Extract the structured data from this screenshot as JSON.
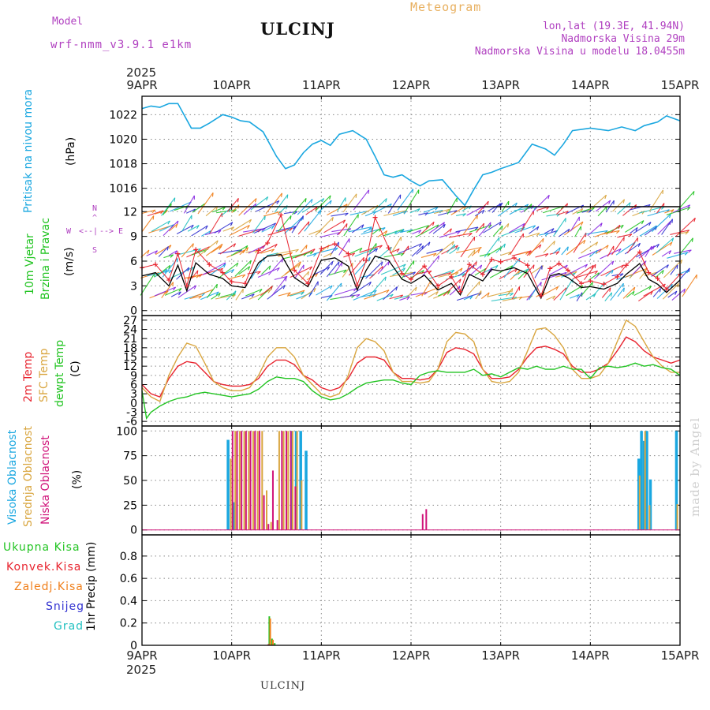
{
  "header": {
    "model_label": "Model",
    "model_name": "wrf-nmm_v3.9.1 e1km",
    "station": "ULCINJ",
    "product": "Meteogram",
    "lonlat": "lon,lat (19.3E, 41.94N)",
    "elevation": "Nadmorska Visina 29m",
    "model_elevation": "Nadmorska Visina u modelu 18.0455m",
    "credit": "made by Angel",
    "footer_station": "ULCINJ"
  },
  "colors": {
    "pressure": "#1aa7e0",
    "wind_speed": "#000000",
    "wind_gust": "#e8242f",
    "temp_2m": "#e8242f",
    "temp_sfc": "#d9a640",
    "temp_dew": "#22c422",
    "cloud_high": "#1aa7e0",
    "cloud_mid": "#d9a640",
    "cloud_low": "#d0147a",
    "precip_total": "#22c422",
    "precip_conv": "#e8242f",
    "precip_strat": "#f07f1a",
    "precip_snow": "#3030d0",
    "precip_graupel": "#20c0c0",
    "header_purple": "#b040c0",
    "header_orange": "#e8b060"
  },
  "time_axis": {
    "year": "2025",
    "days": [
      "9APR",
      "10APR",
      "11APR",
      "12APR",
      "13APR",
      "14APR",
      "15APR"
    ]
  },
  "chart_data": [
    {
      "type": "line",
      "panel": "pressure",
      "title": "",
      "ylabel_lines": [
        "Pritisak na nivou mora",
        "(hPa)"
      ],
      "ylim": [
        1014.5,
        1023.5
      ],
      "yticks": [
        1016,
        1018,
        1020,
        1022
      ],
      "xlim": [
        0,
        6
      ],
      "grid": true,
      "series": [
        {
          "x": [
            0,
            0.1,
            0.2,
            0.3,
            0.4,
            0.55,
            0.65,
            0.75,
            0.9,
            1.0,
            1.1,
            1.2,
            1.35,
            1.5,
            1.6,
            1.7,
            1.8,
            1.9,
            2.0,
            2.1,
            2.2,
            2.35,
            2.5,
            2.6,
            2.7,
            2.8,
            2.9,
            3.0,
            3.1,
            3.2,
            3.35,
            3.5,
            3.6,
            3.7,
            3.8,
            3.9,
            4.0,
            4.2,
            4.35,
            4.5,
            4.6,
            4.7,
            4.8,
            5.0,
            5.2,
            5.35,
            5.5,
            5.6,
            5.75,
            5.85,
            6.0
          ],
          "values": [
            1022.5,
            1022.7,
            1022.6,
            1022.9,
            1022.9,
            1020.9,
            1020.9,
            1021.3,
            1022.0,
            1021.8,
            1021.5,
            1021.4,
            1020.6,
            1018.6,
            1017.6,
            1017.9,
            1018.9,
            1019.6,
            1019.9,
            1019.5,
            1020.4,
            1020.7,
            1020.0,
            1018.6,
            1017.1,
            1016.9,
            1017.1,
            1016.6,
            1016.2,
            1016.6,
            1016.7,
            1015.4,
            1014.6,
            1015.9,
            1017.1,
            1017.3,
            1017.6,
            1018.1,
            1019.6,
            1019.2,
            1018.7,
            1019.6,
            1020.7,
            1020.9,
            1020.7,
            1021.0,
            1020.7,
            1021.1,
            1021.4,
            1021.9,
            1021.5
          ]
        }
      ]
    },
    {
      "type": "line",
      "panel": "wind",
      "ylabel_lines": [
        "10m Vjetar",
        "Brzina i Pravac",
        "(m/s)"
      ],
      "compass": {
        "n": "N",
        "s": "S",
        "w": "W",
        "e": "E",
        "arrow_left": "<--",
        "arrow_right": "-->",
        "bar": "|"
      },
      "ylim": [
        -0.6,
        12.6
      ],
      "yticks": [
        0,
        3,
        6,
        9,
        12
      ],
      "xlim": [
        0,
        6
      ],
      "grid": true,
      "series": [
        {
          "role": "speed",
          "x": [
            0,
            0.15,
            0.3,
            0.4,
            0.5,
            0.6,
            0.75,
            0.9,
            1.0,
            1.15,
            1.3,
            1.4,
            1.55,
            1.7,
            1.85,
            2.0,
            2.15,
            2.3,
            2.4,
            2.5,
            2.6,
            2.75,
            2.9,
            3.0,
            3.15,
            3.3,
            3.45,
            3.55,
            3.65,
            3.8,
            3.9,
            4.0,
            4.15,
            4.3,
            4.45,
            4.55,
            4.65,
            4.75,
            4.9,
            5.0,
            5.15,
            5.3,
            5.4,
            5.55,
            5.65,
            5.75,
            5.85,
            6.0
          ],
          "values": [
            4.2,
            4.6,
            3.0,
            5.5,
            2.4,
            5.8,
            4.4,
            3.9,
            3.0,
            2.8,
            5.8,
            6.6,
            6.8,
            4.0,
            2.9,
            6.1,
            6.4,
            5.4,
            2.5,
            4.9,
            6.6,
            6.1,
            3.8,
            3.3,
            4.3,
            2.5,
            3.3,
            1.9,
            4.4,
            3.6,
            5.0,
            4.8,
            5.2,
            4.5,
            1.5,
            4.2,
            4.5,
            4.0,
            2.8,
            2.9,
            2.6,
            3.3,
            4.4,
            5.7,
            3.8,
            3.2,
            2.2,
            3.7
          ]
        },
        {
          "role": "gust",
          "x": [
            0,
            0.15,
            0.3,
            0.4,
            0.5,
            0.6,
            0.75,
            0.9,
            1.0,
            1.15,
            1.3,
            1.4,
            1.55,
            1.7,
            1.85,
            2.0,
            2.15,
            2.3,
            2.4,
            2.5,
            2.6,
            2.75,
            2.9,
            3.0,
            3.15,
            3.3,
            3.45,
            3.55,
            3.65,
            3.8,
            3.9,
            4.0,
            4.15,
            4.3,
            4.45,
            4.55,
            4.65,
            4.75,
            4.9,
            5.0,
            5.15,
            5.3,
            5.4,
            5.55,
            5.65,
            5.75,
            5.85,
            6.0
          ],
          "values": [
            5.2,
            5.6,
            3.7,
            6.9,
            3.0,
            7.4,
            5.6,
            4.6,
            3.5,
            3.3,
            7.3,
            8.2,
            11.6,
            4.9,
            3.3,
            7.5,
            8.1,
            6.9,
            3.1,
            6.1,
            11.3,
            7.6,
            4.5,
            3.8,
            5.4,
            3.0,
            4.1,
            2.3,
            5.6,
            4.4,
            6.2,
            5.9,
            6.4,
            5.5,
            1.8,
            5.1,
            5.7,
            4.9,
            3.3,
            3.6,
            3.2,
            4.1,
            5.5,
            7.1,
            4.6,
            3.9,
            2.6,
            4.4
          ]
        }
      ]
    },
    {
      "type": "line",
      "panel": "temperature",
      "ylabel_lines": [
        "2m Temp",
        "SFC Temp",
        "dewpt Temp",
        "(C)"
      ],
      "ylim": [
        -7.5,
        28.5
      ],
      "yticks": [
        -6,
        -3,
        0,
        3,
        6,
        9,
        12,
        15,
        18,
        21,
        24,
        27
      ],
      "xlim": [
        0,
        6
      ],
      "grid": true,
      "series": [
        {
          "role": "2m",
          "x": [
            0,
            0.1,
            0.2,
            0.3,
            0.4,
            0.5,
            0.6,
            0.7,
            0.8,
            0.9,
            1.0,
            1.1,
            1.2,
            1.3,
            1.4,
            1.5,
            1.6,
            1.7,
            1.8,
            1.9,
            2.0,
            2.1,
            2.2,
            2.3,
            2.4,
            2.5,
            2.6,
            2.7,
            2.8,
            2.9,
            3.0,
            3.1,
            3.2,
            3.3,
            3.4,
            3.5,
            3.6,
            3.7,
            3.8,
            3.9,
            4.0,
            4.1,
            4.2,
            4.3,
            4.4,
            4.5,
            4.6,
            4.7,
            4.8,
            4.9,
            5.0,
            5.1,
            5.2,
            5.3,
            5.4,
            5.5,
            5.6,
            5.7,
            5.8,
            5.9,
            6.0
          ],
          "values": [
            6,
            3,
            2,
            8,
            12,
            13.5,
            13,
            10,
            7,
            6,
            5.5,
            5.5,
            6,
            8,
            12,
            14,
            14,
            12.5,
            9,
            7.5,
            5,
            4,
            5,
            8,
            13,
            15,
            15,
            14,
            10,
            8,
            8,
            7.5,
            8,
            11,
            16.5,
            18,
            17.5,
            16,
            11,
            8,
            8,
            8.5,
            11,
            15,
            18,
            18.5,
            17.5,
            16,
            12,
            10,
            10,
            11,
            13,
            17,
            21.5,
            20,
            17,
            15,
            14,
            13,
            14
          ]
        },
        {
          "role": "sfc",
          "x": [
            0,
            0.1,
            0.2,
            0.3,
            0.4,
            0.5,
            0.6,
            0.7,
            0.8,
            0.9,
            1.0,
            1.1,
            1.2,
            1.3,
            1.4,
            1.5,
            1.6,
            1.7,
            1.8,
            1.9,
            2.0,
            2.1,
            2.2,
            2.3,
            2.4,
            2.5,
            2.6,
            2.7,
            2.8,
            2.9,
            3.0,
            3.1,
            3.2,
            3.3,
            3.4,
            3.5,
            3.6,
            3.7,
            3.8,
            3.9,
            4.0,
            4.1,
            4.2,
            4.3,
            4.4,
            4.5,
            4.6,
            4.7,
            4.8,
            4.9,
            5.0,
            5.1,
            5.2,
            5.3,
            5.4,
            5.5,
            5.6,
            5.7,
            5.8,
            5.9,
            6.0
          ],
          "values": [
            5,
            2,
            0.5,
            9,
            15,
            19.5,
            18.5,
            13,
            7,
            5,
            4,
            4,
            5,
            9,
            15,
            18,
            18,
            15,
            9,
            6,
            3,
            2,
            3,
            9,
            18,
            21,
            20,
            17,
            10,
            7,
            7,
            6.5,
            7,
            11,
            20,
            23,
            22.5,
            20,
            11,
            7,
            6.5,
            7,
            10,
            17,
            24,
            24.5,
            22,
            18,
            11,
            8,
            8,
            9,
            13,
            20,
            27,
            25,
            20,
            15,
            12,
            10,
            10
          ]
        },
        {
          "role": "dewpoint",
          "x": [
            0,
            0.05,
            0.1,
            0.2,
            0.3,
            0.4,
            0.5,
            0.6,
            0.7,
            0.8,
            0.9,
            1.0,
            1.1,
            1.2,
            1.3,
            1.4,
            1.5,
            1.6,
            1.7,
            1.8,
            1.9,
            2.0,
            2.1,
            2.2,
            2.3,
            2.4,
            2.5,
            2.6,
            2.7,
            2.8,
            2.9,
            3.0,
            3.1,
            3.2,
            3.3,
            3.4,
            3.5,
            3.6,
            3.7,
            3.8,
            3.9,
            4.0,
            4.1,
            4.2,
            4.3,
            4.4,
            4.5,
            4.6,
            4.7,
            4.8,
            4.9,
            5.0,
            5.1,
            5.2,
            5.3,
            5.4,
            5.5,
            5.6,
            5.7,
            5.8,
            5.9,
            6.0
          ],
          "values": [
            4,
            -5,
            -3,
            -1,
            0.5,
            1.5,
            2,
            3,
            3.5,
            3,
            2.5,
            2,
            2.5,
            3,
            4.5,
            7,
            8.5,
            8,
            8,
            7,
            4,
            2,
            1,
            1.5,
            3,
            5,
            6.5,
            7,
            7.5,
            7.5,
            6.5,
            6,
            9,
            10,
            10.5,
            10,
            10,
            10,
            11,
            9,
            9.5,
            8.5,
            10,
            11.5,
            11,
            12,
            11,
            11,
            12,
            11,
            11,
            8,
            11.5,
            12,
            11.5,
            12,
            13,
            12,
            12.5,
            11.5,
            11,
            9
          ]
        }
      ]
    },
    {
      "type": "bar",
      "panel": "cloud",
      "ylabel_lines": [
        "Visoka Oblacnost",
        "Srednja Oblacnost",
        "Niska Oblacnost",
        "(%)"
      ],
      "ylim": [
        -5,
        105
      ],
      "yticks": [
        0,
        25,
        50,
        75,
        100
      ],
      "xlim": [
        0,
        6
      ],
      "grid": true,
      "series": [
        {
          "role": "high",
          "x": [
            0.96,
            1.02,
            1.67,
            1.72,
            1.77,
            1.83,
            5.54,
            5.57,
            5.6,
            5.63,
            5.67,
            5.96
          ],
          "values": [
            91,
            28,
            100,
            100,
            100,
            80,
            72,
            100,
            90,
            100,
            51,
            100
          ]
        },
        {
          "role": "mid",
          "x": [
            0.99,
            1.04,
            1.09,
            1.14,
            1.19,
            1.24,
            1.29,
            1.34,
            1.39,
            1.44,
            1.53,
            1.58,
            1.63,
            1.68,
            1.73,
            1.78,
            5.55,
            5.61,
            5.66,
            5.97
          ],
          "values": [
            72,
            100,
            100,
            100,
            100,
            100,
            100,
            100,
            40,
            8,
            100,
            100,
            100,
            100,
            100,
            50,
            55,
            100,
            25,
            26
          ]
        },
        {
          "role": "low",
          "x": [
            1.01,
            1.06,
            1.11,
            1.16,
            1.21,
            1.26,
            1.31,
            1.36,
            1.41,
            1.46,
            1.51,
            1.56,
            1.61,
            1.66,
            1.71,
            3.13,
            3.17
          ],
          "values": [
            100,
            100,
            100,
            100,
            100,
            100,
            100,
            35,
            6,
            60,
            10,
            100,
            100,
            100,
            44,
            16,
            21
          ]
        }
      ]
    },
    {
      "type": "bar",
      "panel": "precipitation",
      "ylabel": "1hr Precip (mm)",
      "legend": [
        "Ukupna Kisa",
        "Konvek.Kisa",
        "Zaledj.Kisa",
        "Snijeg",
        "Grad"
      ],
      "ylim": [
        0,
        0.99
      ],
      "yticks": [
        0,
        0.2,
        0.4,
        0.6,
        0.8
      ],
      "xlim": [
        0,
        6
      ],
      "grid": true,
      "series": [
        {
          "role": "total",
          "x": [
            1.42,
            1.45,
            1.48
          ],
          "values": [
            0.26,
            0.06,
            0.02
          ]
        },
        {
          "role": "stratiform",
          "x": [
            1.43,
            1.46
          ],
          "values": [
            0.24,
            0.05
          ]
        },
        {
          "role": "convective",
          "x": [
            1.41
          ],
          "values": [
            0.01
          ]
        }
      ]
    }
  ]
}
